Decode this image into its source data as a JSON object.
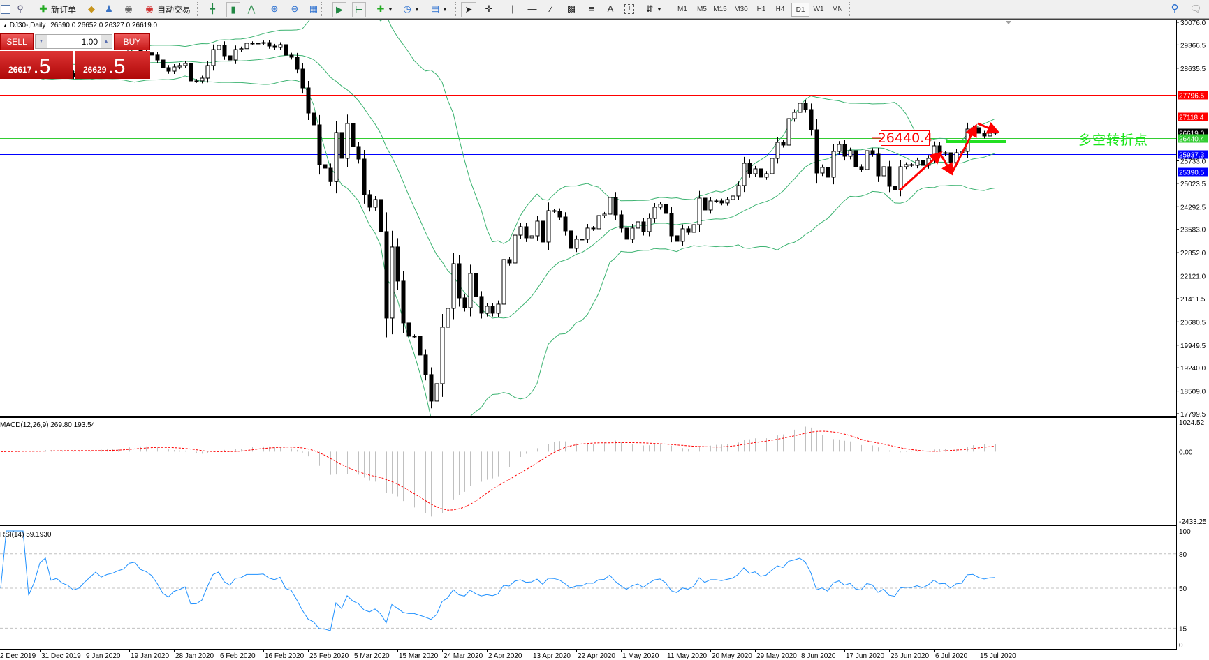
{
  "toolbar": {
    "new_order": "新订单",
    "auto_trading": "自动交易",
    "timeframes": [
      "M1",
      "M5",
      "M15",
      "M30",
      "H1",
      "H4",
      "D1",
      "W1",
      "MN"
    ],
    "active_timeframe": "D1"
  },
  "chart_header": {
    "symbol": "DJ30-,Daily",
    "ohlc": "26590.0 26652.0 26327.0 26619.0"
  },
  "trade_panel": {
    "sell_label": "SELL",
    "buy_label": "BUY",
    "lot": "1.00",
    "sell_price_main": "26617",
    "sell_price_frac": ".5",
    "buy_price_main": "26629",
    "buy_price_frac": ".5"
  },
  "annotations": {
    "price_label": "26440.4",
    "note": "多空转折点"
  },
  "chart_data": {
    "type": "candlestick",
    "symbol": "DJ30-",
    "timeframe": "Daily",
    "closes": [
      28420,
      28480,
      28500,
      28520,
      28560,
      28380,
      28460,
      28700,
      28820,
      28560,
      28600,
      28520,
      28480,
      28380,
      28420,
      28560,
      28700,
      28860,
      28760,
      28840,
      28880,
      28960,
      29020,
      29240,
      29280,
      29160,
      29120,
      29050,
      28894,
      28654,
      28544,
      28676,
      28720,
      28785,
      28238,
      28240,
      28325,
      28720,
      29222,
      29354,
      29026,
      28894,
      29222,
      29250,
      29420,
      29420,
      29420,
      29440,
      29332,
      29288,
      29376,
      29047,
      28982,
      28610,
      28019,
      27231,
      26860,
      25612,
      25503,
      25080,
      26620,
      25810,
      26903,
      26181,
      25787,
      24672,
      24278,
      24519,
      23512,
      20799,
      23031,
      21959,
      20646,
      20230,
      20230,
      19640,
      19027,
      18195,
      18742,
      20514,
      21105,
      22505,
      21433,
      21127,
      22199,
      21477,
      20952,
      21171,
      20952,
      21236,
      22637,
      22527,
      23401,
      23665,
      23315,
      23380,
      23840,
      23184,
      24168,
      24146,
      23971,
      23534,
      22987,
      23272,
      23272,
      23622,
      23600,
      24015,
      24059,
      24584,
      24037,
      23622,
      23272,
      23622,
      23818,
      23512,
      23928,
      24278,
      24370,
      24081,
      23381,
      23206,
      23600,
      23490,
      23730,
      24562,
      24190,
      24475,
      24475,
      24410,
      24518,
      24628,
      24956,
      25656,
      25328,
      25481,
      25219,
      25328,
      25809,
      26312,
      26225,
      27056,
      27253,
      27538,
      27341,
      26706,
      25350,
      25525,
      25219,
      26028,
      26247,
      25875,
      26050,
      25547,
      25460,
      26050,
      25941,
      25262,
      25547,
      24934,
      24825,
      25547,
      25612,
      25590,
      25743,
      25590,
      25809,
      26203,
      25962,
      25984,
      25678,
      25984,
      26028,
      26728,
      26772,
      26597,
      26510,
      26597,
      26619
    ],
    "ylim": [
      17799.5,
      30076.0
    ],
    "y_ticks": [
      "30076.0",
      "29366.5",
      "28635.5",
      "25733.0",
      "25023.5",
      "24292.5",
      "23583.0",
      "22852.0",
      "22121.0",
      "21411.5",
      "20680.5",
      "19949.5",
      "19240.0",
      "18509.0",
      "17799.5"
    ],
    "x_ticks": [
      "2 Dec 2019",
      "31 Dec 2019",
      "9 Jan 2020",
      "19 Jan 2020",
      "28 Jan 2020",
      "6 Feb 2020",
      "16 Feb 2020",
      "25 Feb 2020",
      "5 Mar 2020",
      "15 Mar 2020",
      "24 Mar 2020",
      "2 Apr 2020",
      "13 Apr 2020",
      "22 Apr 2020",
      "1 May 2020",
      "11 May 2020",
      "20 May 2020",
      "29 May 2020",
      "8 Jun 2020",
      "17 Jun 2020",
      "26 Jun 2020",
      "6 Jul 2020",
      "15 Jul 2020"
    ],
    "bollinger": {
      "period": 20,
      "deviation": 2,
      "color": "#3cb371"
    },
    "levels": [
      {
        "value": "27796.5",
        "color": "#ff0000"
      },
      {
        "value": "27118.4",
        "color": "#ff0000"
      },
      {
        "value": "26619.0",
        "color": "#000000",
        "line": "#c0c0c0"
      },
      {
        "value": "26440.4",
        "color": "#32cd32"
      },
      {
        "value": "25937.3",
        "color": "#0000ff"
      },
      {
        "value": "25390.5",
        "color": "#0000ff"
      }
    ],
    "macd": {
      "label": "MACD(12,26,9) 269.80 193.54",
      "ylim": [
        -2433.25,
        1024.52
      ],
      "y_ticks": [
        "1024.52",
        "0.00",
        "-2433.25"
      ],
      "histogram_color": "#c0c0c0",
      "signal_color": "#ff0000"
    },
    "rsi": {
      "label": "RSI(14) 59.1930",
      "ylim": [
        0,
        100
      ],
      "y_ticks": [
        "100",
        "80",
        "50",
        "15",
        "0"
      ],
      "levels": [
        80,
        50,
        15
      ],
      "color": "#1e90ff"
    }
  }
}
